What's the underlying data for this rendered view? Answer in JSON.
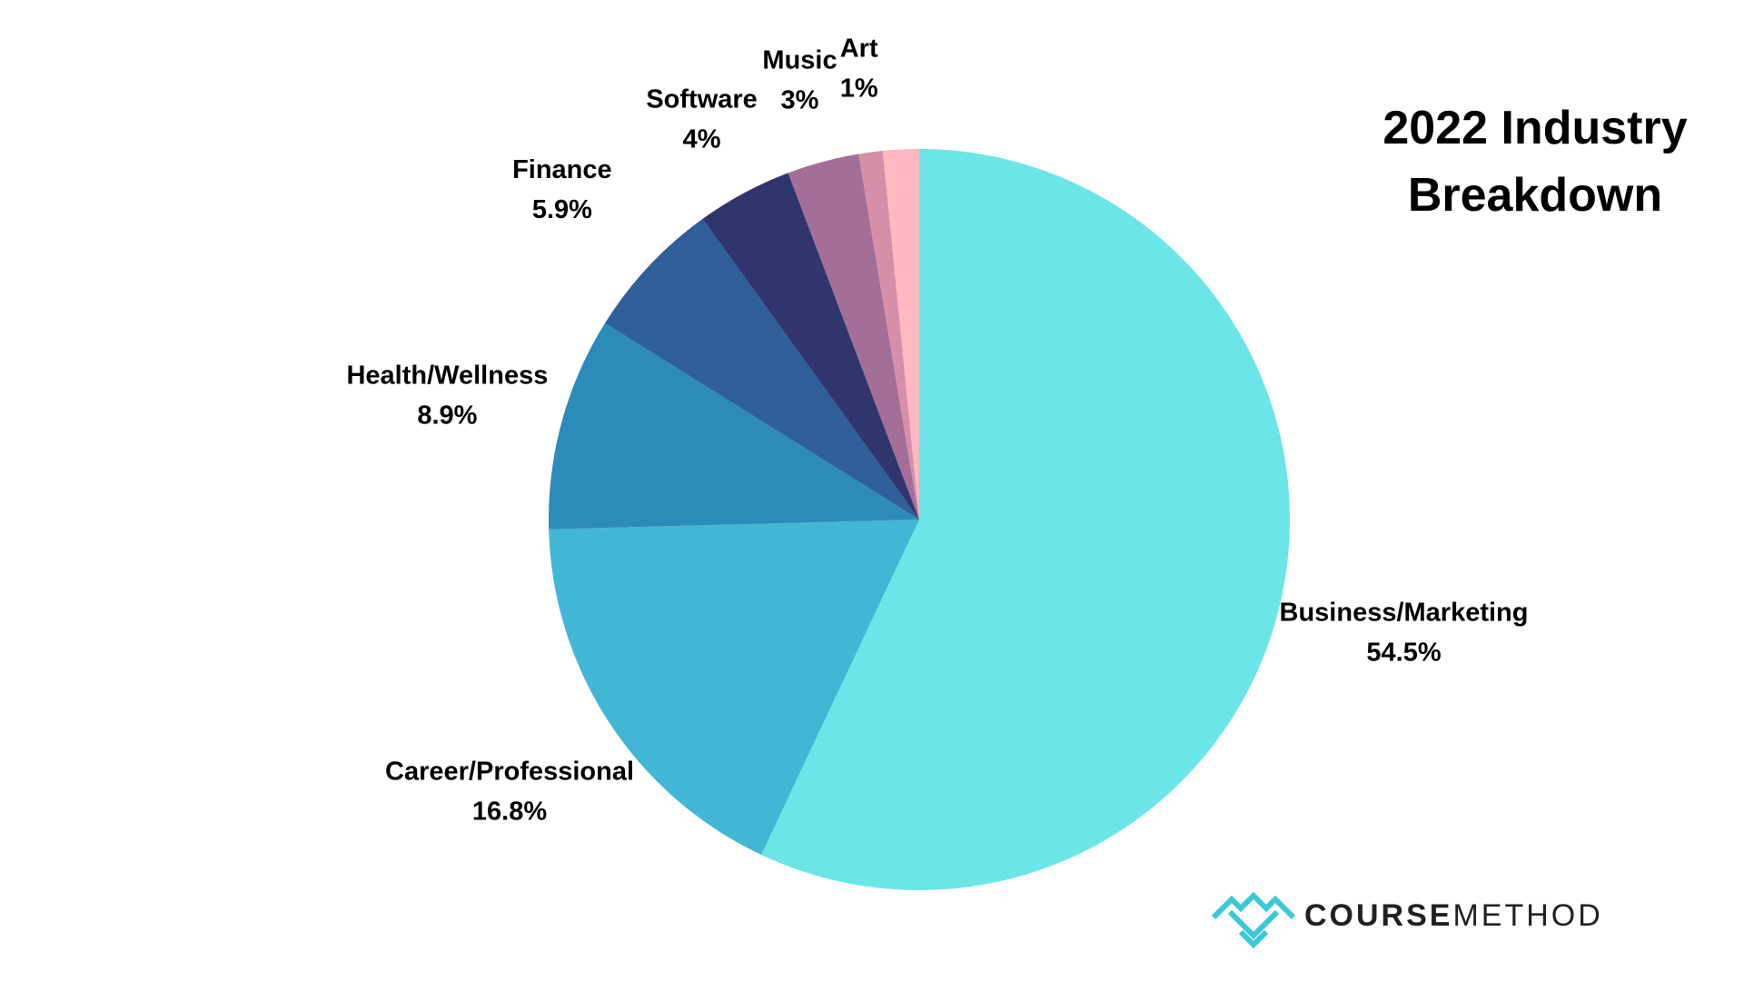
{
  "chart_data": {
    "type": "pie",
    "title": "2022 Industry\nBreakdown",
    "start_angle_deg": 0,
    "direction": "clockwise",
    "slices": [
      {
        "label": "Business/Marketing",
        "value": 54.5,
        "value_label": "54.5%",
        "color": "#6ce5e8"
      },
      {
        "label": "Career/Professional",
        "value": 16.8,
        "value_label": "16.8%",
        "color": "#42b7d5"
      },
      {
        "label": "Health/Wellness",
        "value": 8.9,
        "value_label": "8.9%",
        "color": "#2d8bba"
      },
      {
        "label": "Finance",
        "value": 5.9,
        "value_label": "5.9%",
        "color": "#2f5f98"
      },
      {
        "label": "Software",
        "value": 4,
        "value_label": "4%",
        "color": "#31356e"
      },
      {
        "label": "Music",
        "value": 3,
        "value_label": "3%",
        "color": "#a46f96"
      },
      {
        "label": "Art",
        "value": 1,
        "value_label": "1%",
        "color": "#d68fa9"
      },
      {
        "label": "",
        "value": 1.5,
        "value_label": "",
        "color": "#ffb8bf"
      }
    ]
  },
  "logo": {
    "text_bold": "COURSE",
    "text_light": "METHOD",
    "brand_color": "#3cc8d8",
    "text_color": "#1f2123"
  }
}
